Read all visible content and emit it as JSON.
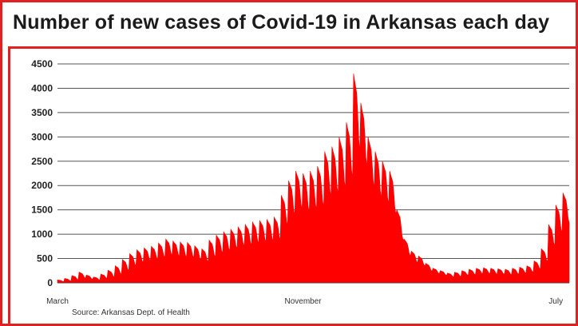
{
  "title": "Number of new cases of Covid-19 in Arkansas each day",
  "source": "Source: Arkansas Dept. of Health",
  "colors": {
    "accent": "#e0211f",
    "series": "#ff0000",
    "grid": "#555555"
  },
  "chart_data": {
    "type": "area",
    "title": "Number of new cases of Covid-19 in Arkansas each day",
    "xlabel": "",
    "ylabel": "",
    "ylim": [
      0,
      4500
    ],
    "yticks": [
      0,
      500,
      1000,
      1500,
      2000,
      2500,
      3000,
      3500,
      4000,
      4500
    ],
    "ytick_labels": [
      "0",
      "500",
      "1000",
      "1500",
      "2000",
      "2500",
      "3000",
      "3500",
      "4000",
      "4500"
    ],
    "xticks": [
      {
        "label": "March",
        "week": 0
      },
      {
        "label": "November",
        "week": 34
      },
      {
        "label": "July",
        "week": 69
      }
    ],
    "grid": true,
    "legend": "none",
    "series": [
      {
        "unit": "weekly peak and low daily cases",
        "peaks": [
          60,
          90,
          150,
          220,
          160,
          120,
          180,
          260,
          350,
          480,
          600,
          680,
          720,
          750,
          820,
          900,
          860,
          840,
          830,
          760,
          700,
          880,
          980,
          1050,
          1100,
          1150,
          1200,
          1250,
          1280,
          1300,
          1350,
          1800,
          2100,
          2300,
          2250,
          2300,
          2400,
          2700,
          2800,
          3000,
          3300,
          4300,
          3700,
          3000,
          2700,
          2500,
          2300,
          1500,
          900,
          650,
          550,
          400,
          300,
          250,
          200,
          220,
          250,
          280,
          300,
          310,
          300,
          290,
          280,
          300,
          320,
          350,
          450,
          700,
          1200,
          1600,
          1850
        ],
        "lows": [
          20,
          30,
          50,
          80,
          60,
          50,
          80,
          100,
          150,
          220,
          320,
          380,
          420,
          450,
          480,
          520,
          500,
          480,
          470,
          430,
          400,
          480,
          560,
          600,
          650,
          700,
          720,
          750,
          780,
          800,
          820,
          1100,
          1300,
          1400,
          1350,
          1400,
          1450,
          1650,
          1700,
          1800,
          2000,
          2500,
          2200,
          1800,
          1600,
          1500,
          1300,
          800,
          500,
          380,
          320,
          220,
          170,
          140,
          110,
          120,
          140,
          150,
          170,
          170,
          160,
          160,
          150,
          160,
          180,
          200,
          260,
          400,
          700,
          950,
          1150
        ]
      }
    ]
  }
}
